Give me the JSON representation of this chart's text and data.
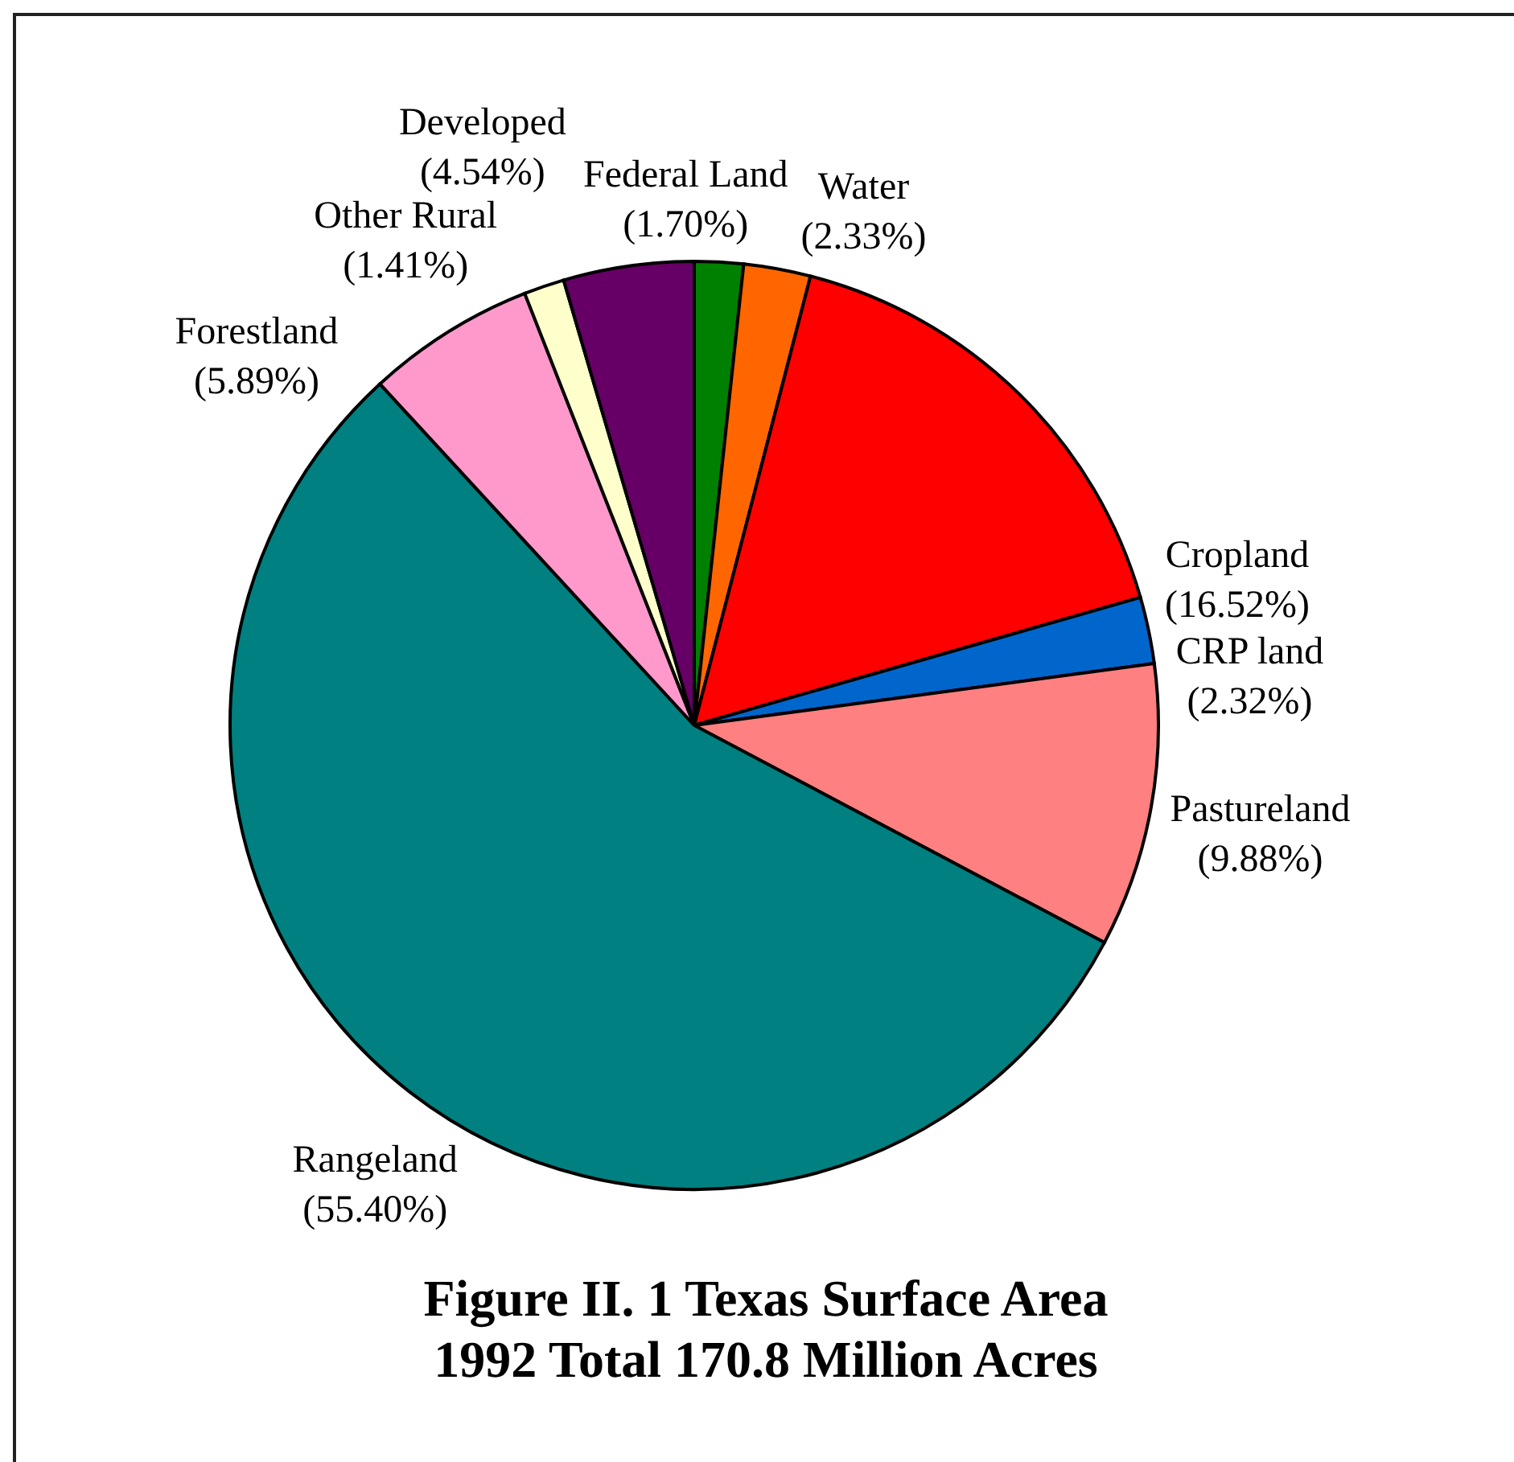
{
  "chart_data": {
    "type": "pie",
    "title": "Figure II. 1 Texas Surface Area",
    "subtitle": "1992 Total 170.8 Million Acres",
    "categories": [
      "Federal Land",
      "Water",
      "Cropland",
      "CRP land",
      "Pastureland",
      "Rangeland",
      "Forestland",
      "Other Rural",
      "Developed"
    ],
    "values": [
      1.7,
      2.33,
      16.52,
      2.32,
      9.88,
      55.4,
      5.89,
      1.41,
      4.54
    ],
    "value_labels": [
      "(1.70%)",
      "(2.33%)",
      "(16.52%)",
      "(2.32%)",
      "(9.88%)",
      "(55.40%)",
      "(5.89%)",
      "(1.41%)",
      "(4.54%)"
    ],
    "colors": [
      "#008000",
      "#ff6600",
      "#ff0000",
      "#0066cc",
      "#ff8080",
      "#008080",
      "#ff99cc",
      "#ffffcc",
      "#660066"
    ]
  }
}
